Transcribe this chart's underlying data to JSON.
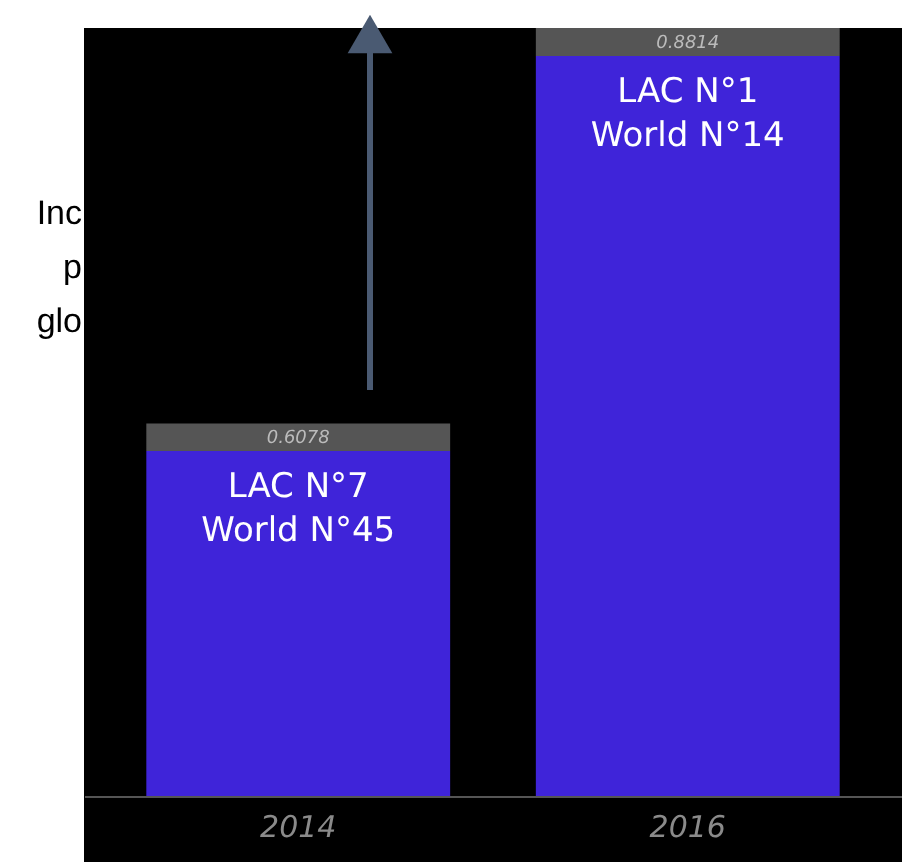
{
  "chart_data": {
    "type": "bar",
    "categories": [
      "2014",
      "2016"
    ],
    "values": [
      0.6078,
      0.8814
    ],
    "color": "#3f24d9",
    "ylim": [
      0.35,
      0.8814
    ],
    "tick_labels": "x",
    "data_labels": true,
    "annotations": [
      "LAC N°7\nWorld N°45",
      "LAC N°1\nWorld N°14",
      "Inc\np\nglo"
    ]
  }
}
